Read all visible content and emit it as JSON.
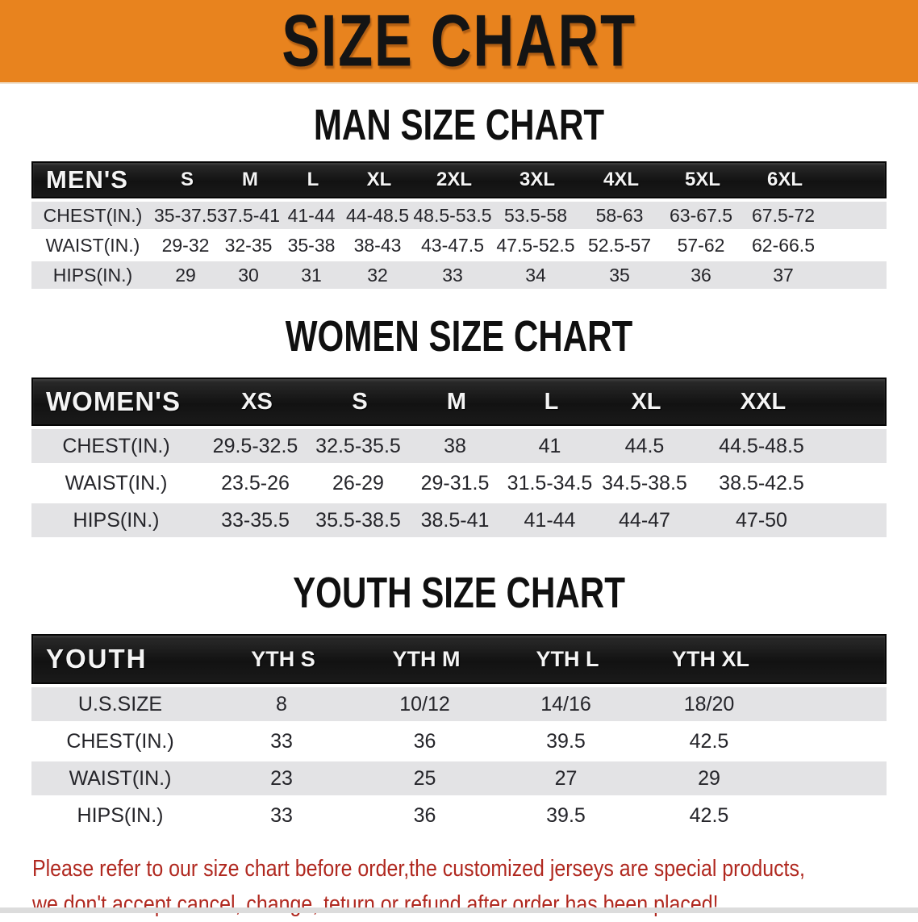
{
  "banner": {
    "title": "SIZE CHART",
    "background_color": "#e8831e",
    "text_color": "#141414"
  },
  "colors": {
    "header_bar_black": "#171717",
    "stripe_gray": "#e3e3e5",
    "notice_red": "#b0281f"
  },
  "sections": [
    {
      "title": "MAN SIZE CHART",
      "table": {
        "header": [
          "MEN'S",
          "S",
          "M",
          "L",
          "XL",
          "2XL",
          "3XL",
          "4XL",
          "5XL",
          "6XL"
        ],
        "rows": [
          {
            "label": "CHEST(IN.)",
            "values": [
              "35-37.5",
              "37.5-41",
              "41-44",
              "44-48.5",
              "48.5-53.5",
              "53.5-58",
              "58-63",
              "63-67.5",
              "67.5-72"
            ]
          },
          {
            "label": "WAIST(IN.)",
            "values": [
              "29-32",
              "32-35",
              "35-38",
              "38-43",
              "43-47.5",
              "47.5-52.5",
              "52.5-57",
              "57-62",
              "62-66.5"
            ]
          },
          {
            "label": "HIPS(IN.)",
            "values": [
              "29",
              "30",
              "31",
              "32",
              "33",
              "34",
              "35",
              "36",
              "37"
            ]
          }
        ]
      }
    },
    {
      "title": "WOMEN SIZE CHART",
      "table": {
        "header": [
          "WOMEN'S",
          "XS",
          "S",
          "M",
          "L",
          "XL",
          "XXL"
        ],
        "rows": [
          {
            "label": "CHEST(IN.)",
            "values": [
              "29.5-32.5",
              "32.5-35.5",
              "38",
              "41",
              "44.5",
              "44.5-48.5"
            ]
          },
          {
            "label": "WAIST(IN.)",
            "values": [
              "23.5-26",
              "26-29",
              "29-31.5",
              "31.5-34.5",
              "34.5-38.5",
              "38.5-42.5"
            ]
          },
          {
            "label": "HIPS(IN.)",
            "values": [
              "33-35.5",
              "35.5-38.5",
              "38.5-41",
              "41-44",
              "44-47",
              "47-50"
            ]
          }
        ]
      }
    },
    {
      "title": "YOUTH SIZE CHART",
      "table": {
        "header": [
          "YOUTH",
          "YTH S",
          "YTH M",
          "YTH L",
          "YTH XL"
        ],
        "rows": [
          {
            "label": "U.S.SIZE",
            "values": [
              "8",
              "10/12",
              "14/16",
              "18/20"
            ]
          },
          {
            "label": "CHEST(IN.)",
            "values": [
              "33",
              "36",
              "39.5",
              "42.5"
            ]
          },
          {
            "label": "WAIST(IN.)",
            "values": [
              "23",
              "25",
              "27",
              "29"
            ]
          },
          {
            "label": "HIPS(IN.)",
            "values": [
              "33",
              "36",
              "39.5",
              "42.5"
            ]
          }
        ]
      }
    }
  ],
  "notice": {
    "line1": "Please refer to our size chart before order,the customized jerseys are special products,",
    "line2": "we don't accept cancel, change, teturn or refund after order has been placed!"
  }
}
